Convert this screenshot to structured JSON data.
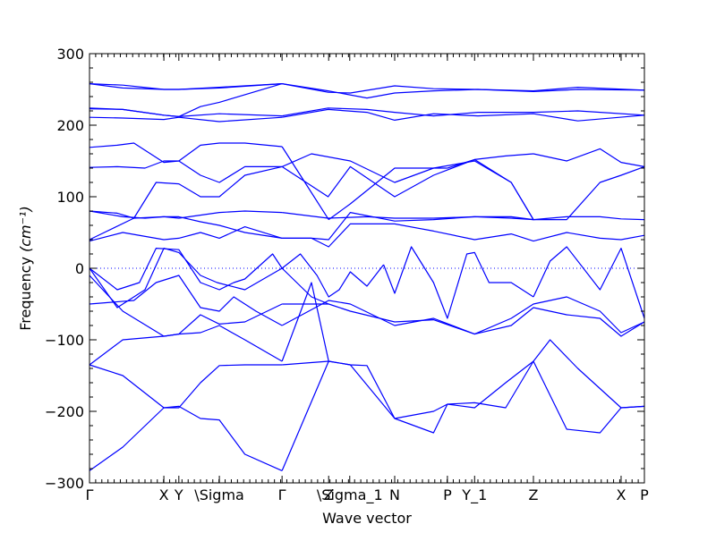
{
  "chart_data": {
    "type": "line",
    "title": "",
    "xlabel": "Wave vector",
    "ylabel": "Frequency",
    "ylabel_units": "(cm⁻¹)",
    "ylim": [
      -300,
      300
    ],
    "xlim": [
      0,
      1
    ],
    "y_ticks": [
      -300,
      -200,
      -100,
      0,
      100,
      200,
      300
    ],
    "x_ticks": [
      {
        "label": "Γ",
        "x": 0.0
      },
      {
        "label": "X",
        "x": 0.134
      },
      {
        "label": "Y",
        "x": 0.161
      },
      {
        "label": "\\Sigma",
        "x": 0.234
      },
      {
        "label": "Γ",
        "x": 0.347
      },
      {
        "label": "Z",
        "x": 0.431
      },
      {
        "label": "\\Sigma_1",
        "x": 0.469
      },
      {
        "label": "N",
        "x": 0.55
      },
      {
        "label": "P",
        "x": 0.645
      },
      {
        "label": "Y_1",
        "x": 0.694
      },
      {
        "label": "Z",
        "x": 0.8
      },
      {
        "label": "X",
        "x": 0.958
      },
      {
        "label": "P",
        "x": 1.0
      }
    ],
    "zero_line": true,
    "line_color": "#0000ff",
    "series": [
      {
        "x": [
          0,
          0.06,
          0.134,
          0.161,
          0.234,
          0.347
        ],
        "y": [
          258,
          256,
          250,
          250,
          253,
          258
        ]
      },
      {
        "x": [
          0.347,
          0.43,
          0.47,
          0.55,
          0.62,
          0.7,
          0.8,
          0.88,
          1.0
        ],
        "y": [
          258,
          246,
          245,
          255,
          251,
          250,
          247,
          250,
          249
        ]
      },
      {
        "x": [
          0,
          0.06,
          0.134,
          0.161,
          0.234,
          0.347
        ],
        "y": [
          258,
          252,
          250,
          250,
          252,
          258
        ]
      },
      {
        "x": [
          0.347,
          0.43,
          0.5,
          0.55,
          0.62,
          0.7,
          0.8,
          0.88,
          1.0
        ],
        "y": [
          258,
          248,
          238,
          245,
          248,
          250,
          248,
          253,
          249
        ]
      },
      {
        "x": [
          0,
          0.06,
          0.134,
          0.161,
          0.2,
          0.234,
          0.347
        ],
        "y": [
          224,
          222,
          214,
          212,
          226,
          232,
          258
        ]
      },
      {
        "x": [
          0,
          0.06,
          0.134,
          0.161,
          0.234,
          0.347
        ],
        "y": [
          223,
          222,
          214,
          212,
          216,
          213
        ]
      },
      {
        "x": [
          0.347,
          0.43,
          0.5,
          0.55,
          0.62,
          0.7,
          0.8,
          0.88,
          1.0
        ],
        "y": [
          213,
          224,
          222,
          218,
          213,
          218,
          218,
          220,
          214
        ]
      },
      {
        "x": [
          0,
          0.06,
          0.134,
          0.161,
          0.234,
          0.347
        ],
        "y": [
          211,
          210,
          208,
          211,
          205,
          211
        ]
      },
      {
        "x": [
          0.347,
          0.43,
          0.5,
          0.55,
          0.62,
          0.7,
          0.8,
          0.88,
          1.0
        ],
        "y": [
          211,
          222,
          218,
          207,
          216,
          213,
          216,
          206,
          214
        ]
      },
      {
        "x": [
          0,
          0.05,
          0.08,
          0.134,
          0.161,
          0.2,
          0.234,
          0.28,
          0.347
        ],
        "y": [
          169,
          172,
          175,
          148,
          150,
          172,
          175,
          175,
          170
        ]
      },
      {
        "x": [
          0.347,
          0.38,
          0.431
        ],
        "y": [
          170,
          130,
          68
        ]
      },
      {
        "x": [
          0.431,
          0.47,
          0.55,
          0.62,
          0.645
        ],
        "y": [
          68,
          90,
          140,
          140,
          140
        ]
      },
      {
        "x": [
          0.645,
          0.694,
          0.75,
          0.8
        ],
        "y": [
          140,
          152,
          157,
          160
        ]
      },
      {
        "x": [
          0.8,
          0.86,
          0.92,
          0.958,
          1.0
        ],
        "y": [
          160,
          150,
          167,
          148,
          142
        ]
      },
      {
        "x": [
          0,
          0.05,
          0.1,
          0.134,
          0.161,
          0.2,
          0.234,
          0.28,
          0.347
        ],
        "y": [
          141,
          142,
          140,
          150,
          150,
          130,
          120,
          142,
          142
        ]
      },
      {
        "x": [
          0.347,
          0.4,
          0.47,
          0.55,
          0.62,
          0.694,
          0.76,
          0.8
        ],
        "y": [
          142,
          160,
          150,
          120,
          140,
          150,
          120,
          68
        ]
      },
      {
        "x": [
          0.8,
          0.86,
          0.92,
          0.958,
          1.0
        ],
        "y": [
          68,
          68,
          120,
          130,
          142
        ]
      },
      {
        "x": [
          0,
          0.05,
          0.08,
          0.12,
          0.161,
          0.2,
          0.234,
          0.28,
          0.347
        ],
        "y": [
          80,
          77,
          70,
          120,
          118,
          100,
          100,
          130,
          142
        ]
      },
      {
        "x": [
          0.347,
          0.43,
          0.47,
          0.55,
          0.62,
          0.694,
          0.76,
          0.8
        ],
        "y": [
          142,
          100,
          142,
          100,
          130,
          152,
          120,
          68
        ]
      },
      {
        "x": [
          0,
          0.06,
          0.1,
          0.134,
          0.161,
          0.234,
          0.28,
          0.347
        ],
        "y": [
          80,
          72,
          70,
          72,
          70,
          78,
          80,
          78
        ]
      },
      {
        "x": [
          0.347,
          0.43,
          0.5,
          0.55,
          0.62,
          0.694,
          0.76,
          0.8
        ],
        "y": [
          78,
          70,
          72,
          70,
          70,
          72,
          70,
          68
        ]
      },
      {
        "x": [
          0,
          0.08,
          0.134,
          0.161,
          0.2,
          0.234,
          0.28,
          0.347
        ],
        "y": [
          40,
          70,
          72,
          72,
          65,
          60,
          50,
          42
        ]
      },
      {
        "x": [
          0.347,
          0.4,
          0.431,
          0.47,
          0.55,
          0.62,
          0.694,
          0.76,
          0.8,
          0.86,
          0.92,
          0.958,
          1.0
        ],
        "y": [
          42,
          42,
          40,
          78,
          66,
          68,
          72,
          72,
          68,
          72,
          72,
          69,
          68
        ]
      },
      {
        "x": [
          0,
          0.06,
          0.134,
          0.161,
          0.2,
          0.234,
          0.28,
          0.347
        ],
        "y": [
          38,
          50,
          40,
          42,
          50,
          42,
          58,
          42
        ]
      },
      {
        "x": [
          0.347,
          0.4,
          0.431,
          0.47,
          0.55,
          0.62,
          0.694,
          0.76,
          0.8,
          0.86,
          0.92,
          0.958,
          1.0
        ],
        "y": [
          42,
          42,
          30,
          62,
          62,
          52,
          40,
          48,
          38,
          50,
          42,
          40,
          46
        ]
      },
      {
        "x": [
          0,
          0.05,
          0.09,
          0.12,
          0.161,
          0.2,
          0.234,
          0.26,
          0.28,
          0.33,
          0.347
        ],
        "y": [
          0,
          -30,
          -20,
          28,
          26,
          -20,
          -30,
          -20,
          -15,
          20,
          0
        ]
      },
      {
        "x": [
          0.347,
          0.4,
          0.431
        ],
        "y": [
          0,
          -40,
          -50
        ]
      },
      {
        "x": [
          0,
          0.05,
          0.1,
          0.134,
          0.161,
          0.2,
          0.23,
          0.28,
          0.347
        ],
        "y": [
          0,
          -55,
          -30,
          28,
          22,
          -10,
          -20,
          -30,
          0
        ]
      },
      {
        "x": [
          0.347,
          0.38,
          0.41,
          0.431,
          0.45,
          0.47,
          0.5,
          0.53
        ],
        "y": [
          0,
          20,
          -10,
          -40,
          -30,
          -5,
          -25,
          5
        ]
      },
      {
        "x": [
          0.53,
          0.55,
          0.58,
          0.62,
          0.645,
          0.68,
          0.694,
          0.72,
          0.76,
          0.8
        ],
        "y": [
          5,
          -35,
          30,
          -20,
          -70,
          20,
          22,
          -20,
          -20,
          -40
        ]
      },
      {
        "x": [
          0.8,
          0.83,
          0.86,
          0.92,
          0.958,
          1.0
        ],
        "y": [
          -40,
          10,
          30,
          -30,
          28,
          -70
        ]
      },
      {
        "x": [
          0,
          0.08,
          0.12,
          0.161,
          0.2,
          0.234,
          0.26,
          0.3,
          0.347
        ],
        "y": [
          -50,
          -45,
          -20,
          -10,
          -55,
          -60,
          -40,
          -60,
          -80
        ]
      },
      {
        "x": [
          0.347,
          0.431,
          0.47,
          0.55,
          0.62,
          0.694,
          0.76,
          0.8,
          0.86,
          0.92,
          0.958,
          1.0
        ],
        "y": [
          -80,
          -45,
          -50,
          -80,
          -70,
          -92,
          -70,
          -50,
          -40,
          -60,
          -90,
          -75
        ]
      },
      {
        "x": [
          0,
          0.06,
          0.134,
          0.161,
          0.2,
          0.234,
          0.28,
          0.347
        ],
        "y": [
          -10,
          -60,
          -95,
          -92,
          -65,
          -78,
          -75,
          -50
        ]
      },
      {
        "x": [
          0.347,
          0.431,
          0.47,
          0.55,
          0.62,
          0.694,
          0.76,
          0.8,
          0.86,
          0.92,
          0.958,
          1.0
        ],
        "y": [
          -50,
          -50,
          -60,
          -75,
          -72,
          -92,
          -80,
          -55,
          -65,
          -70,
          -95,
          -75
        ]
      },
      {
        "x": [
          0,
          0.06,
          0.134,
          0.161,
          0.2,
          0.234,
          0.28,
          0.347
        ],
        "y": [
          -135,
          -100,
          -95,
          -92,
          -90,
          -80,
          -100,
          -130
        ]
      },
      {
        "x": [
          0.347,
          0.4,
          0.431,
          0.47,
          0.55,
          0.62,
          0.645
        ],
        "y": [
          -130,
          -20,
          -130,
          -135,
          -210,
          -200,
          -190
        ]
      },
      {
        "x": [
          0.645,
          0.694,
          0.75,
          0.8,
          0.83,
          0.88,
          0.958,
          1.0
        ],
        "y": [
          -190,
          -195,
          -160,
          -130,
          -100,
          -140,
          -195,
          -193
        ]
      },
      {
        "x": [
          0,
          0.06,
          0.134,
          0.161,
          0.2,
          0.234,
          0.28,
          0.347
        ],
        "y": [
          -135,
          -150,
          -195,
          -195,
          -160,
          -136,
          -135,
          -135
        ]
      },
      {
        "x": [
          0.347,
          0.431,
          0.47,
          0.5,
          0.55,
          0.62,
          0.645,
          0.694,
          0.75,
          0.8,
          0.86,
          0.92,
          0.958,
          1.0
        ],
        "y": [
          -135,
          -130,
          -135,
          -136,
          -210,
          -230,
          -190,
          -188,
          -195,
          -130,
          -225,
          -230,
          -195,
          -193
        ]
      },
      {
        "x": [
          0,
          0.06,
          0.134,
          0.161,
          0.2,
          0.234,
          0.28,
          0.347
        ],
        "y": [
          -283,
          -250,
          -195,
          -193,
          -210,
          -212,
          -260,
          -283
        ]
      },
      {
        "x": [
          0.347,
          0.431
        ],
        "y": [
          -283,
          -130
        ]
      }
    ]
  }
}
